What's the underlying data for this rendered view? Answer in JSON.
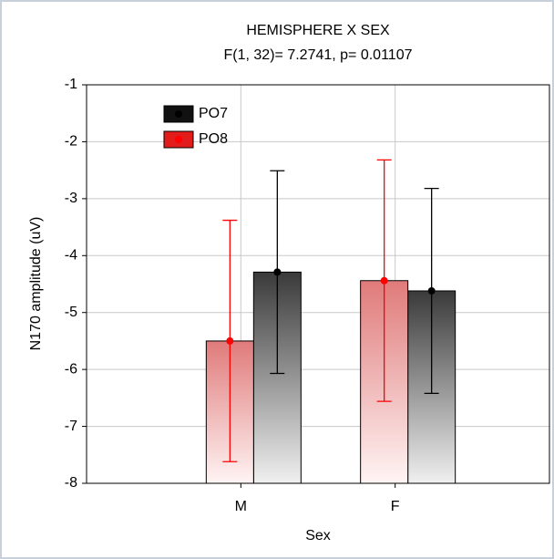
{
  "chart_data": {
    "type": "bar",
    "title": "HEMISPHERE X SEX",
    "subtitle": "F(1, 32)= 7.2741, p= 0.01107",
    "x_label": "Sex",
    "y_label": "N170 amplitude (uV)",
    "categories": [
      "M",
      "F"
    ],
    "series": [
      {
        "name": "PO7",
        "color": "#000000",
        "values": [
          -4.29,
          -4.62
        ],
        "errors": [
          1.78,
          1.8
        ]
      },
      {
        "name": "PO8",
        "color": "#ff0000",
        "values": [
          -5.5,
          -4.44
        ],
        "errors": [
          2.12,
          2.12
        ]
      }
    ],
    "ylim": [
      -8,
      -1
    ],
    "yticks": [
      -1,
      -2,
      -3,
      -4,
      -5,
      -6,
      -7,
      -8
    ],
    "grid": true,
    "legend": "upper left"
  }
}
